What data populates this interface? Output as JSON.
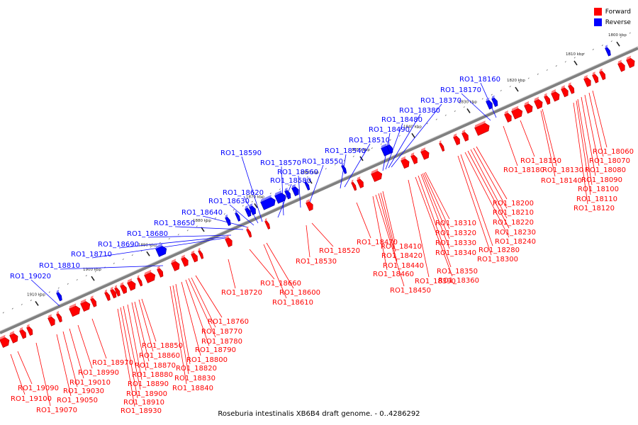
{
  "legend": {
    "forward_label": "Forward",
    "reverse_label": "Reverse",
    "forward_color": "#ff0000",
    "reverse_color": "#0000ff"
  },
  "caption": "Roseburia intestinalis XB6B4 draft genome. - 0..4286292",
  "track": {
    "start_kbp": 1915,
    "end_kbp": 1795,
    "backbone_color": "#808080",
    "tick_labels": [
      "1800 kbp",
      "1810 kbp",
      "1820 kbp",
      "1830 kbp",
      "1840 kbp",
      "1850 kbp",
      "1860 kbp",
      "1870 kbp",
      "1880 kbp",
      "1890 kbp",
      "1900 kbp",
      "1910 kbp"
    ]
  },
  "forward_labels": [
    "RO1_18060",
    "RO1_18070",
    "RO1_18080",
    "RO1_18090",
    "RO1_18100",
    "RO1_18110",
    "RO1_18120",
    "RO1_18130",
    "RO1_18140",
    "RO1_18150",
    "RO1_18180",
    "RO1_18200",
    "RO1_18210",
    "RO1_18220",
    "RO1_18230",
    "RO1_18240",
    "RO1_18280",
    "RO1_18300",
    "RO1_18310",
    "RO1_18320",
    "RO1_18330",
    "RO1_18340",
    "RO1_18350",
    "RO1_18360",
    "RO1_18390",
    "RO1_18410",
    "RO1_18420",
    "RO1_18440",
    "RO1_18450",
    "RO1_18460",
    "RO1_18470",
    "RO1_18520",
    "RO1_18530",
    "RO1_18600",
    "RO1_18610",
    "RO1_18660",
    "RO1_18720",
    "RO1_18760",
    "RO1_18770",
    "RO1_18780",
    "RO1_18790",
    "RO1_18800",
    "RO1_18820",
    "RO1_18830",
    "RO1_18840",
    "RO1_18850",
    "RO1_18860",
    "RO1_18870",
    "RO1_18880",
    "RO1_18890",
    "RO1_18900",
    "RO1_18910",
    "RO1_18930",
    "RO1_18970",
    "RO1_18990",
    "RO1_19010",
    "RO1_19030",
    "RO1_19050",
    "RO1_19070",
    "RO1_19090",
    "RO1_19100"
  ],
  "reverse_labels": [
    "RO1_18160",
    "RO1_18170",
    "RO1_18370",
    "RO1_18380",
    "RO1_18480",
    "RO1_18490",
    "RO1_18510",
    "RO1_18540",
    "RO1_18550",
    "RO1_18560",
    "RO1_18570",
    "RO1_18580",
    "RO1_18590",
    "RO1_18620",
    "RO1_18630",
    "RO1_18640",
    "RO1_18650",
    "RO1_18680",
    "RO1_18690",
    "RO1_18710",
    "RO1_18810",
    "RO1_19020"
  ]
}
